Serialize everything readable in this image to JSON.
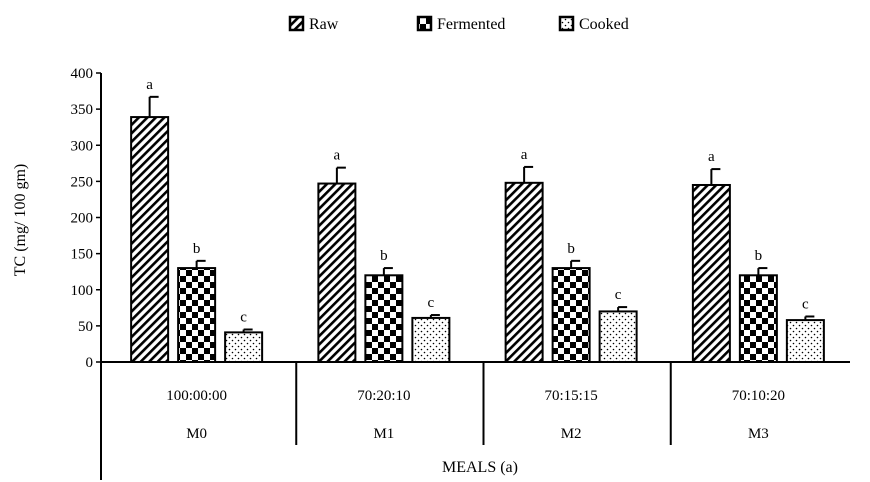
{
  "chart_data": {
    "type": "bar",
    "ylabel": "TC (mg/ 100 gm)",
    "xlabel": "MEALS (a)",
    "ylim": [
      0,
      400
    ],
    "yticks": [
      0,
      50,
      100,
      150,
      200,
      250,
      300,
      350,
      400
    ],
    "legend_position": "top",
    "categories": [
      "M0",
      "M1",
      "M2",
      "M3"
    ],
    "ratios": [
      "100:00:00",
      "70:20:10",
      "70:15:15",
      "70:10:20"
    ],
    "series": [
      {
        "name": "Raw",
        "pattern": "diagonal-hatch",
        "values": [
          339,
          247,
          248,
          245
        ],
        "errors": [
          28,
          22,
          22,
          22
        ],
        "letters": [
          "a",
          "a",
          "a",
          "a"
        ]
      },
      {
        "name": "Fermented",
        "pattern": "checkerboard",
        "values": [
          130,
          120,
          130,
          120
        ],
        "errors": [
          10,
          10,
          10,
          10
        ],
        "letters": [
          "b",
          "b",
          "b",
          "b"
        ]
      },
      {
        "name": "Cooked",
        "pattern": "dots",
        "values": [
          41,
          61,
          70,
          58
        ],
        "errors": [
          4,
          4,
          6,
          5
        ],
        "letters": [
          "c",
          "c",
          "c",
          "c"
        ]
      }
    ]
  }
}
